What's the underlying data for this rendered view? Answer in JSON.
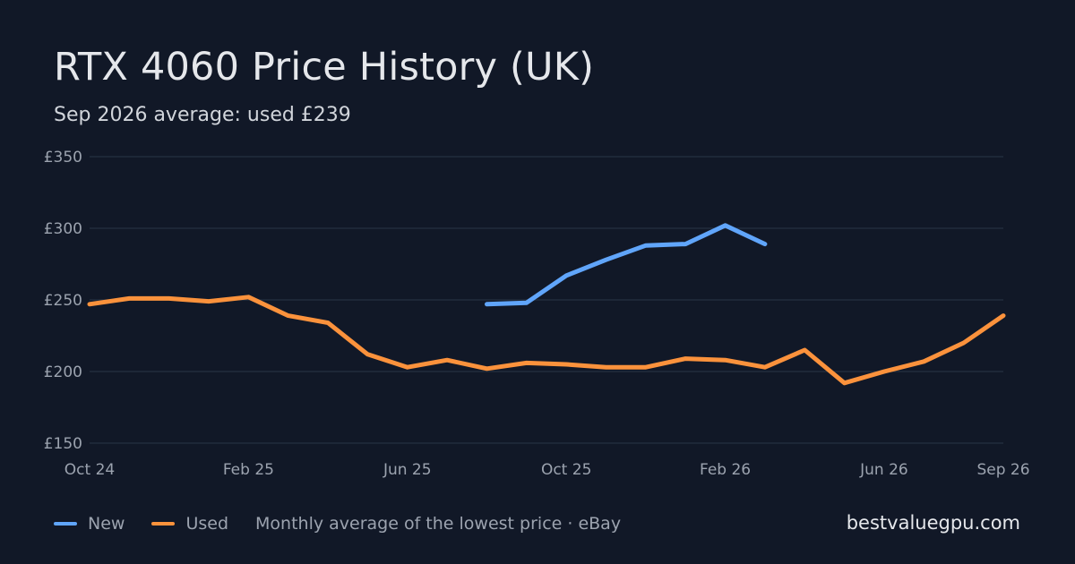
{
  "header": {
    "title": "RTX 4060 Price History (UK)",
    "subtitle": "Sep 2026 average: used £239"
  },
  "legend": {
    "new_label": "New",
    "used_label": "Used",
    "note": "Monthly average of the lowest price · eBay"
  },
  "footer": {
    "site": "bestvaluegpu.com"
  },
  "colors": {
    "background": "#111827",
    "new": "#60a5fa",
    "used": "#fb923c",
    "grid": "#253041",
    "tick_text": "#9ca3af"
  },
  "chart_data": {
    "type": "line",
    "title": "RTX 4060 Price History (UK)",
    "subtitle": "Sep 2026 average: used £239",
    "xlabel": "",
    "ylabel": "",
    "x": [
      "2024-10",
      "2024-11",
      "2024-12",
      "2025-01",
      "2025-02",
      "2025-03",
      "2025-04",
      "2025-05",
      "2025-06",
      "2025-07",
      "2025-08",
      "2025-09",
      "2025-10",
      "2025-11",
      "2025-12",
      "2026-01",
      "2026-02",
      "2026-03",
      "2026-04",
      "2026-05",
      "2026-06",
      "2026-07",
      "2026-08",
      "2026-09"
    ],
    "x_tick_labels": [
      {
        "x": "2024-10",
        "label": "Oct 24"
      },
      {
        "x": "2025-02",
        "label": "Feb 25"
      },
      {
        "x": "2025-06",
        "label": "Jun 25"
      },
      {
        "x": "2025-10",
        "label": "Oct 25"
      },
      {
        "x": "2026-02",
        "label": "Feb 26"
      },
      {
        "x": "2026-06",
        "label": "Jun 26"
      },
      {
        "x": "2026-09",
        "label": "Sep 26"
      }
    ],
    "y_ticks": [
      150,
      200,
      250,
      300,
      350
    ],
    "y_tick_labels": [
      "£150",
      "£200",
      "£250",
      "£300",
      "£350"
    ],
    "ylim": [
      150,
      350
    ],
    "grid": true,
    "legend_position": "bottom-left",
    "series": [
      {
        "name": "New",
        "color": "#60a5fa",
        "values": [
          null,
          null,
          null,
          null,
          null,
          null,
          null,
          null,
          null,
          null,
          247,
          248,
          267,
          278,
          288,
          289,
          302,
          289,
          null,
          null,
          null,
          null,
          null,
          null
        ]
      },
      {
        "name": "Used",
        "color": "#fb923c",
        "values": [
          247,
          251,
          251,
          249,
          252,
          239,
          234,
          212,
          203,
          208,
          202,
          206,
          205,
          203,
          203,
          209,
          208,
          203,
          215,
          192,
          200,
          207,
          220,
          239
        ]
      }
    ]
  }
}
